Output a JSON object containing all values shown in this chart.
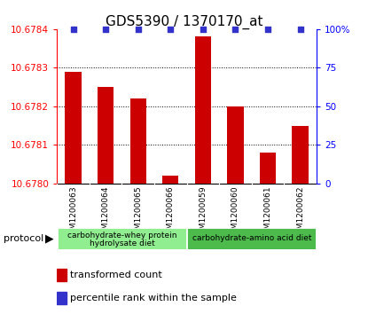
{
  "title": "GDS5390 / 1370170_at",
  "samples": [
    "GSM1200063",
    "GSM1200064",
    "GSM1200065",
    "GSM1200066",
    "GSM1200059",
    "GSM1200060",
    "GSM1200061",
    "GSM1200062"
  ],
  "red_values": [
    10.67829,
    10.67825,
    10.67822,
    10.67802,
    10.67838,
    10.6782,
    10.67808,
    10.67815
  ],
  "blue_values": [
    100,
    100,
    100,
    100,
    100,
    100,
    100,
    100
  ],
  "ylim_left": [
    10.678,
    10.6784
  ],
  "ylim_right": [
    0,
    100
  ],
  "yticks_left": [
    10.678,
    10.6781,
    10.6782,
    10.6783,
    10.6784
  ],
  "yticks_right": [
    0,
    25,
    50,
    75,
    100
  ],
  "ytick_right_labels": [
    "0",
    "25",
    "50",
    "75",
    "100%"
  ],
  "group1_label_line1": "carbohydrate-whey protein",
  "group1_label_line2": "hydrolysate diet",
  "group2_label": "carbohydrate-amino acid diet",
  "group1_color": "#90EE90",
  "group2_color": "#4CBB4C",
  "legend_red": "transformed count",
  "legend_blue": "percentile rank within the sample",
  "protocol_label": "protocol",
  "bar_color": "#CC0000",
  "dot_color": "#3333CC",
  "gray_color": "#C8C8C8",
  "title_fontsize": 11,
  "tick_fontsize": 7.5,
  "label_fontsize": 8
}
